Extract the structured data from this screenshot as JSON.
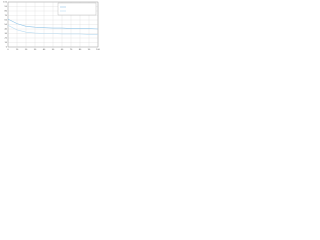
{
  "chart_data": {
    "type": "line",
    "x": [
      0,
      10,
      20,
      30,
      40,
      50,
      60,
      70,
      80,
      90,
      100
    ],
    "series": [
      {
        "color": "#8fc4e8",
        "values": [
          62,
          52,
          46,
          44,
          43,
          42,
          42,
          41,
          41,
          41,
          40
        ]
      },
      {
        "color": "#b9dcf2",
        "values": [
          48,
          38,
          33,
          31,
          30,
          30,
          29,
          29,
          29,
          28,
          28
        ]
      }
    ],
    "xlim": [
      0,
      100
    ],
    "xticks": [
      0,
      10,
      20,
      30,
      40,
      50,
      60,
      70,
      80,
      90,
      100
    ],
    "ylim": [
      0,
      100
    ],
    "yticks": [
      0,
      10,
      20,
      30,
      40,
      50,
      60,
      70,
      80,
      90,
      100
    ],
    "grid": true
  }
}
